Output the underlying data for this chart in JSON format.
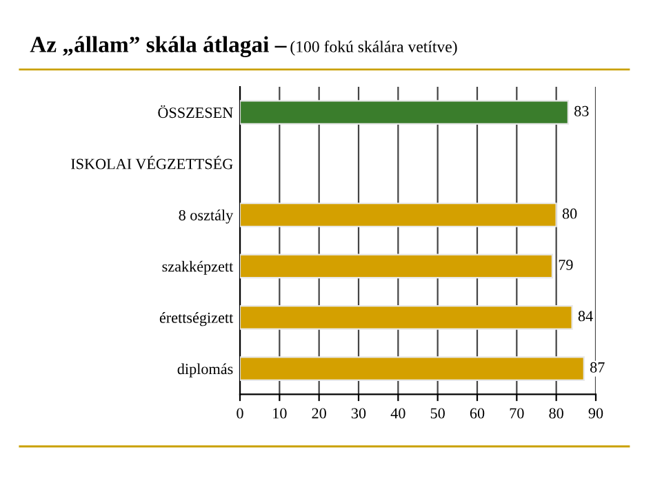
{
  "chart_data": {
    "type": "bar",
    "orientation": "horizontal",
    "title": "Az „állam” skála átlagai –",
    "subtitle": "(100 fokú skálára vetítve)",
    "categories": [
      "ÖSSZESEN",
      "ISKOLAI VÉGZETTSÉG",
      "8 osztály",
      "szakképzett",
      "érettségizett",
      "diplomás"
    ],
    "values": [
      83,
      null,
      80,
      79,
      84,
      87
    ],
    "colors": [
      "#3a7d2c",
      null,
      "#d4a000",
      "#d4a000",
      "#d4a000",
      "#d4a000"
    ],
    "xlim": [
      0,
      90
    ],
    "xticks": [
      0,
      10,
      20,
      30,
      40,
      50,
      60,
      70,
      80,
      90
    ],
    "grid": "x",
    "data_labels": true
  }
}
